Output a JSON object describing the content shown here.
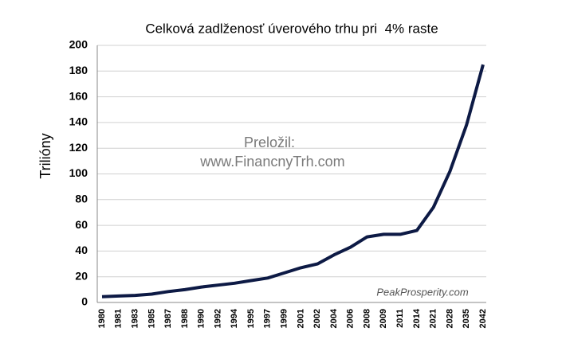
{
  "chart_data": {
    "type": "line",
    "title": "Celková zadlženosť úverového trhu pri  4% raste",
    "y_label": "Trilióny",
    "annotations": [
      "Preložil:",
      "www.FinancnyTrh.com",
      "PeakProsperity.com"
    ],
    "categories": [
      "1980",
      "1981",
      "1983",
      "1985",
      "1987",
      "1988",
      "1990",
      "1992",
      "1994",
      "1995",
      "1997",
      "1999",
      "2001",
      "2002",
      "2004",
      "2006",
      "2008",
      "2009",
      "2011",
      "2014",
      "2021",
      "2028",
      "2035",
      "2042"
    ],
    "values": [
      4.5,
      5,
      5.5,
      6.5,
      8.5,
      10,
      12,
      13.5,
      15,
      17,
      19,
      23,
      27,
      30,
      37,
      43,
      51,
      53,
      53,
      56,
      74,
      102,
      138,
      185
    ],
    "color": "#0d1a45",
    "ylim": [
      0,
      200
    ],
    "yticks": [
      0,
      20,
      40,
      60,
      80,
      100,
      120,
      140,
      160,
      180,
      200
    ],
    "grid": true
  }
}
